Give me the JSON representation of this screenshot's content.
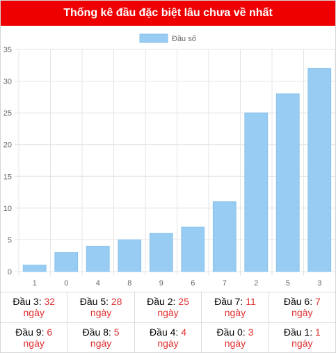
{
  "header": {
    "title": "Thống kê đầu đặc biệt lâu chưa về nhất"
  },
  "colors": {
    "header_bg": "#ee0000",
    "bar": "#99ccf2",
    "bar_border": "#88c2ee",
    "highlight": "#e03030"
  },
  "chart_data": {
    "type": "bar",
    "categories": [
      "1",
      "0",
      "4",
      "8",
      "9",
      "6",
      "7",
      "2",
      "5",
      "3"
    ],
    "series": [
      {
        "name": "Đầu số",
        "values": [
          1,
          3,
          4,
          5,
          6,
          7,
          11,
          25,
          28,
          32
        ]
      }
    ],
    "ylim": [
      0,
      35
    ],
    "yticks": [
      "0",
      "5",
      "10",
      "15",
      "20",
      "25",
      "30",
      "35"
    ],
    "grid": true,
    "legend": "top-center"
  },
  "stats": {
    "unit": "ngày",
    "rows": [
      [
        {
          "label": "Đầu 3: ",
          "value": "32"
        },
        {
          "label": "Đầu 5: ",
          "value": "28"
        },
        {
          "label": "Đầu 2: ",
          "value": "25"
        },
        {
          "label": "Đầu 7: ",
          "value": "11"
        },
        {
          "label": "Đầu 6: ",
          "value": "7"
        }
      ],
      [
        {
          "label": "Đầu 9: ",
          "value": "6"
        },
        {
          "label": "Đầu 8: ",
          "value": "5"
        },
        {
          "label": "Đầu 4: ",
          "value": "4"
        },
        {
          "label": "Đầu 0: ",
          "value": "3"
        },
        {
          "label": "Đầu 1: ",
          "value": "1"
        }
      ]
    ]
  }
}
